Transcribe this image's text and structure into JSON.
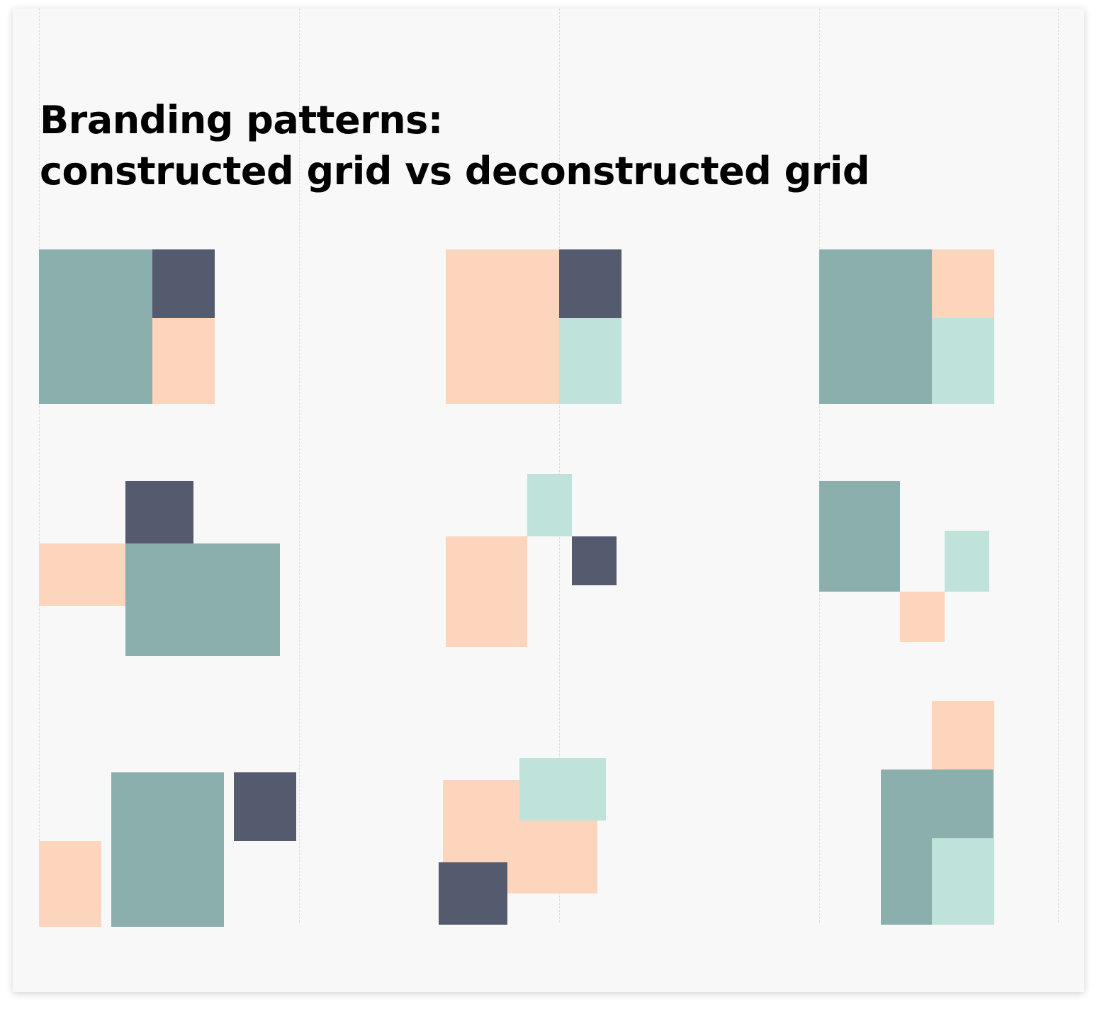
{
  "title": {
    "line1": "Branding patterns:",
    "line2": "constructed grid vs deconstructed grid"
  },
  "colors": {
    "background": "#f8f8f8",
    "teal": "#8aafad",
    "navy": "#555b6e",
    "peach": "#fdd5bc",
    "mint": "#bfe2da",
    "guide": "#dcdcdc"
  }
}
